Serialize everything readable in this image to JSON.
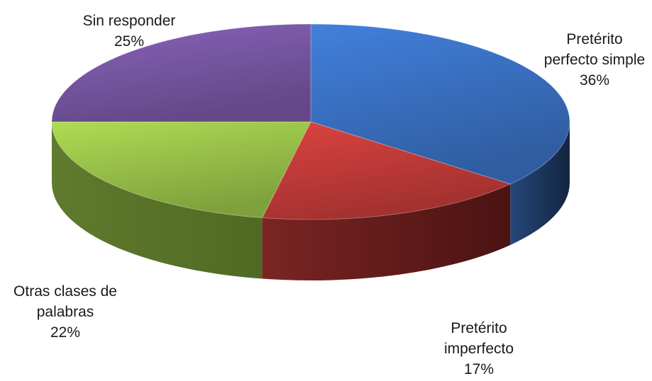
{
  "chart_data": {
    "type": "pie",
    "style": "3d-tilted",
    "title": "",
    "legend": "none",
    "slices": [
      {
        "label": [
          "Pretérito",
          "perfecto simple"
        ],
        "percent_label": "36%",
        "value": 36,
        "color": "#3b72c4",
        "side_color": "#13253f"
      },
      {
        "label": [
          "Pretérito",
          "imperfecto"
        ],
        "percent_label": "17%",
        "value": 17,
        "color": "#c43c39",
        "side_color": "#4a1312"
      },
      {
        "label": [
          "Otras clases de",
          "palabras"
        ],
        "percent_label": "22%",
        "value": 22,
        "color": "#9bc44a",
        "side_color": "#4f6a23"
      },
      {
        "label": [
          "Sin responder"
        ],
        "percent_label": "25%",
        "value": 25,
        "color": "#7a58a6",
        "side_color": "#3b2757"
      }
    ]
  }
}
